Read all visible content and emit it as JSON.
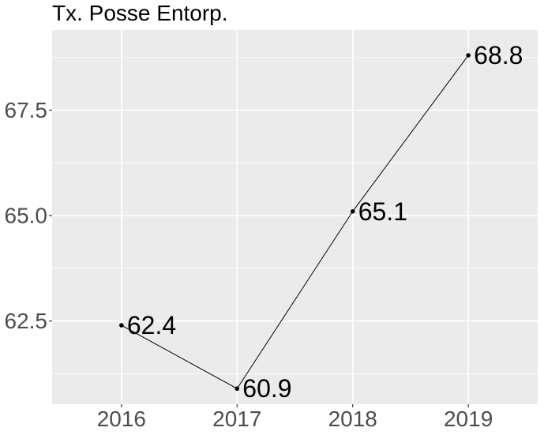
{
  "chart_data": {
    "type": "line",
    "title": "Tx. Posse Entorp.",
    "xlabel": "",
    "ylabel": "",
    "x": [
      "2016",
      "2017",
      "2018",
      "2019"
    ],
    "series": [
      {
        "values": [
          62.4,
          60.9,
          65.1,
          68.8
        ]
      }
    ],
    "data_labels": [
      "62.4",
      "60.9",
      "65.1",
      "68.8"
    ],
    "y_ticks": [
      62.5,
      65.0,
      67.5
    ],
    "y_tick_labels": [
      "62.5",
      "65.0",
      "67.5"
    ],
    "ylim": [
      60.53,
      69.4
    ],
    "grid": true,
    "legend": "none",
    "colors": {
      "panel_background": "#ebebeb",
      "grid_major": "#ffffff",
      "line": "#000000",
      "point": "#000000",
      "tick_text": "#4d4d4d"
    }
  }
}
